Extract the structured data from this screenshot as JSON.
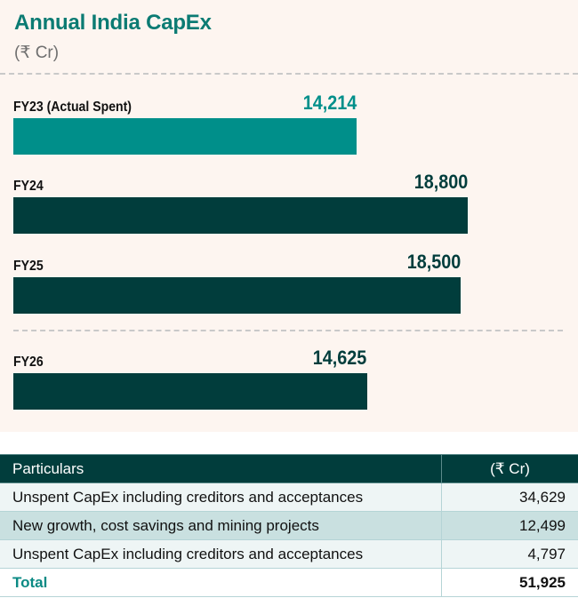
{
  "header": {
    "title": "Annual India CapEx",
    "unit": "(₹ Cr)"
  },
  "colors": {
    "actual": "#008f8a",
    "planned": "#013d3c",
    "title": "#0b7b73"
  },
  "chart_data": {
    "type": "bar",
    "orientation": "horizontal",
    "title": "Annual India CapEx",
    "subtitle": "(₹ Cr)",
    "categories": [
      "FY23 (Actual Spent)",
      "FY24",
      "FY25",
      "FY26"
    ],
    "values": [
      14214,
      18800,
      18500,
      14625
    ],
    "value_labels": [
      "14,214",
      "18,800",
      "18,500",
      "14,625"
    ],
    "series_kind": [
      "actual",
      "planned",
      "planned",
      "planned"
    ],
    "xlim": [
      0,
      18800
    ],
    "grid": false,
    "legend": "none"
  },
  "table": {
    "headers": [
      "Particulars",
      "(₹ Cr)"
    ],
    "rows": [
      {
        "label": "Unspent CapEx including creditors and acceptances",
        "value": "34,629"
      },
      {
        "label": "New growth, cost savings and mining projects",
        "value": "12,499"
      },
      {
        "label": "Unspent CapEx including creditors and acceptances",
        "value": "4,797"
      }
    ],
    "total": {
      "label": "Total",
      "value": "51,925"
    }
  }
}
